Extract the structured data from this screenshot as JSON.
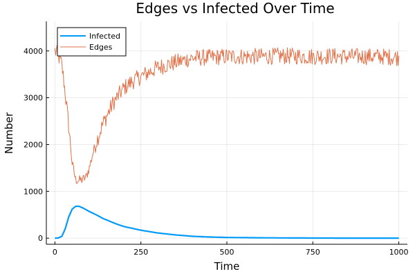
{
  "chart_data": {
    "type": "line",
    "title": "Edges vs Infected Over Time",
    "xlabel": "Time",
    "ylabel": "Number",
    "xlim": [
      -25,
      1025
    ],
    "ylim": [
      -130,
      4630
    ],
    "xticks": [
      0,
      250,
      500,
      750,
      1000
    ],
    "yticks": [
      0,
      1000,
      2000,
      3000,
      4000
    ],
    "grid": true,
    "legend_position": "top-left",
    "series": [
      {
        "name": "Infected",
        "color": "#009af9",
        "x": [
          0,
          10,
          20,
          30,
          40,
          50,
          60,
          70,
          80,
          90,
          100,
          120,
          140,
          160,
          180,
          200,
          250,
          300,
          350,
          400,
          450,
          500,
          600,
          700,
          800,
          900,
          1000
        ],
        "y": [
          0,
          5,
          40,
          200,
          450,
          620,
          680,
          680,
          650,
          610,
          570,
          500,
          420,
          360,
          300,
          250,
          170,
          110,
          70,
          40,
          25,
          15,
          8,
          4,
          2,
          1,
          1
        ]
      },
      {
        "name": "Edges",
        "color": "#e26f46",
        "x": [
          0,
          10,
          20,
          30,
          40,
          50,
          60,
          70,
          80,
          90,
          100,
          110,
          120,
          130,
          140,
          150,
          160,
          170,
          180,
          190,
          200,
          225,
          250,
          275,
          300,
          325,
          350,
          375,
          400,
          450,
          500,
          550,
          600,
          650,
          700,
          750,
          800,
          850,
          900,
          950,
          1000
        ],
        "y": [
          4000,
          3900,
          3700,
          3100,
          2400,
          1600,
          1250,
          1230,
          1250,
          1300,
          1500,
          1800,
          2050,
          2250,
          2450,
          2600,
          2750,
          2900,
          3000,
          3100,
          3200,
          3350,
          3450,
          3550,
          3650,
          3700,
          3750,
          3800,
          3850,
          3860,
          3880,
          3880,
          3880,
          3890,
          3890,
          3880,
          3890,
          3880,
          3880,
          3880,
          3860
        ],
        "amplitude": 180
      }
    ]
  }
}
